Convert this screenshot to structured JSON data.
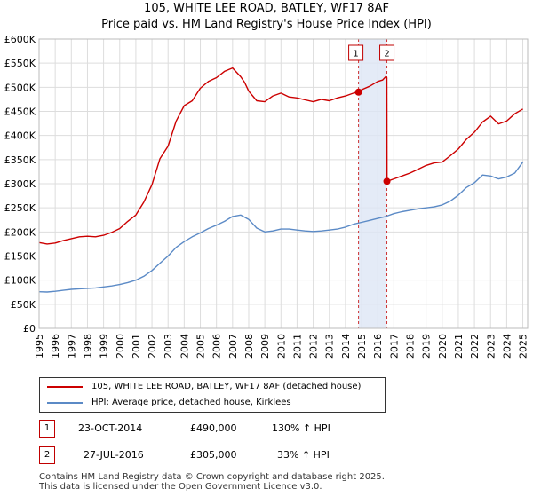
{
  "title": {
    "line1": "105, WHITE LEE ROAD, BATLEY, WF17 8AF",
    "line2": "Price paid vs. HM Land Registry's House Price Index (HPI)"
  },
  "chart_data": {
    "type": "line",
    "title": "105, WHITE LEE ROAD, BATLEY, WF17 8AF - Price paid vs. HM Land Registry's House Price Index (HPI)",
    "xlabel": "",
    "ylabel": "",
    "xlim": [
      1995,
      2025.3
    ],
    "ylim": [
      0,
      600000
    ],
    "grid": true,
    "x_ticks": [
      "1995",
      "1996",
      "1997",
      "1998",
      "1999",
      "2000",
      "2001",
      "2002",
      "2003",
      "2004",
      "2005",
      "2006",
      "2007",
      "2008",
      "2009",
      "2010",
      "2011",
      "2012",
      "2013",
      "2014",
      "2015",
      "2016",
      "2017",
      "2018",
      "2019",
      "2020",
      "2021",
      "2022",
      "2023",
      "2024",
      "2025"
    ],
    "y_ticks": [
      {
        "value": 0,
        "label": "£0"
      },
      {
        "value": 50000,
        "label": "£50K"
      },
      {
        "value": 100000,
        "label": "£100K"
      },
      {
        "value": 150000,
        "label": "£150K"
      },
      {
        "value": 200000,
        "label": "£200K"
      },
      {
        "value": 250000,
        "label": "£250K"
      },
      {
        "value": 300000,
        "label": "£300K"
      },
      {
        "value": 350000,
        "label": "£350K"
      },
      {
        "value": 400000,
        "label": "£400K"
      },
      {
        "value": 450000,
        "label": "£450K"
      },
      {
        "value": 500000,
        "label": "£500K"
      },
      {
        "value": 550000,
        "label": "£550K"
      },
      {
        "value": 600000,
        "label": "£600K"
      }
    ],
    "series": [
      {
        "name": "105, WHITE LEE ROAD, BATLEY, WF17 8AF (detached house)",
        "color": "#cc0000",
        "x": [
          1995.0,
          1995.5,
          1996.0,
          1996.5,
          1997.0,
          1997.5,
          1998.0,
          1998.5,
          1999.0,
          1999.5,
          2000.0,
          2000.5,
          2001.0,
          2001.5,
          2002.0,
          2002.5,
          2003.0,
          2003.5,
          2004.0,
          2004.5,
          2005.0,
          2005.5,
          2006.0,
          2006.5,
          2007.0,
          2007.5,
          2007.75,
          2008.0,
          2008.5,
          2009.0,
          2009.5,
          2010.0,
          2010.5,
          2011.0,
          2011.5,
          2012.0,
          2012.5,
          2013.0,
          2013.5,
          2014.0,
          2014.5,
          2014.81,
          2015.0,
          2015.5,
          2016.0,
          2016.3,
          2016.5,
          2016.57,
          2016.58,
          2017.0,
          2017.5,
          2018.0,
          2018.5,
          2019.0,
          2019.5,
          2020.0,
          2020.5,
          2021.0,
          2021.5,
          2022.0,
          2022.5,
          2023.0,
          2023.5,
          2024.0,
          2024.5,
          2025.0
        ],
        "values": [
          178000,
          175000,
          177000,
          182000,
          186000,
          190000,
          191000,
          190000,
          193000,
          199000,
          207000,
          222000,
          235000,
          262000,
          298000,
          352000,
          378000,
          430000,
          462000,
          472000,
          498000,
          512000,
          520000,
          533000,
          540000,
          522000,
          510000,
          492000,
          472000,
          470000,
          482000,
          488000,
          480000,
          478000,
          474000,
          470000,
          475000,
          472000,
          478000,
          482000,
          488000,
          490000,
          495000,
          502000,
          512000,
          515000,
          522000,
          520000,
          305000,
          310000,
          316000,
          322000,
          330000,
          338000,
          343000,
          345000,
          358000,
          372000,
          392000,
          407000,
          428000,
          440000,
          424000,
          430000,
          445000,
          455000
        ]
      },
      {
        "name": "HPI: Average price, detached house, Kirklees",
        "color": "#5b8ac6",
        "x": [
          1995.0,
          1995.5,
          1996.0,
          1996.5,
          1997.0,
          1997.5,
          1998.0,
          1998.5,
          1999.0,
          1999.5,
          2000.0,
          2000.5,
          2001.0,
          2001.5,
          2002.0,
          2002.5,
          2003.0,
          2003.5,
          2004.0,
          2004.5,
          2005.0,
          2005.5,
          2006.0,
          2006.5,
          2007.0,
          2007.5,
          2008.0,
          2008.5,
          2009.0,
          2009.5,
          2010.0,
          2010.5,
          2011.0,
          2011.5,
          2012.0,
          2012.5,
          2013.0,
          2013.5,
          2014.0,
          2014.5,
          2015.0,
          2015.5,
          2016.0,
          2016.5,
          2017.0,
          2017.5,
          2018.0,
          2018.5,
          2019.0,
          2019.5,
          2020.0,
          2020.5,
          2021.0,
          2021.5,
          2022.0,
          2022.5,
          2023.0,
          2023.5,
          2024.0,
          2024.5,
          2025.0
        ],
        "values": [
          76000,
          75500,
          77000,
          79000,
          81000,
          82000,
          83000,
          84000,
          86000,
          88000,
          91000,
          95000,
          100000,
          108000,
          120000,
          135000,
          150000,
          168000,
          180000,
          190000,
          198000,
          207000,
          214000,
          222000,
          232000,
          235000,
          226000,
          208000,
          200000,
          202000,
          206000,
          206000,
          204000,
          202000,
          201000,
          202000,
          204000,
          206000,
          210000,
          216000,
          220000,
          224000,
          228000,
          232000,
          238000,
          242000,
          245000,
          248000,
          250000,
          252000,
          256000,
          264000,
          276000,
          292000,
          302000,
          318000,
          316000,
          310000,
          314000,
          322000,
          345000
        ]
      }
    ],
    "annotations": [
      {
        "label": "1",
        "x": 2014.81,
        "value": 490000
      },
      {
        "label": "2",
        "x": 2016.57,
        "value": 305000
      }
    ]
  },
  "legend": {
    "items": [
      {
        "label": "105, WHITE LEE ROAD, BATLEY, WF17 8AF (detached house)",
        "color": "#cc0000"
      },
      {
        "label": "HPI: Average price, detached house, Kirklees",
        "color": "#5b8ac6"
      }
    ]
  },
  "transactions": [
    {
      "num": "1",
      "date": "23-OCT-2014",
      "price": "£490,000",
      "hpi": "130% ↑ HPI"
    },
    {
      "num": "2",
      "date": "27-JUL-2016",
      "price": "£305,000",
      "hpi": "33% ↑ HPI"
    }
  ],
  "footer": {
    "line1": "Contains HM Land Registry data © Crown copyright and database right 2025.",
    "line2": "This data is licensed under the Open Government Licence v3.0."
  }
}
